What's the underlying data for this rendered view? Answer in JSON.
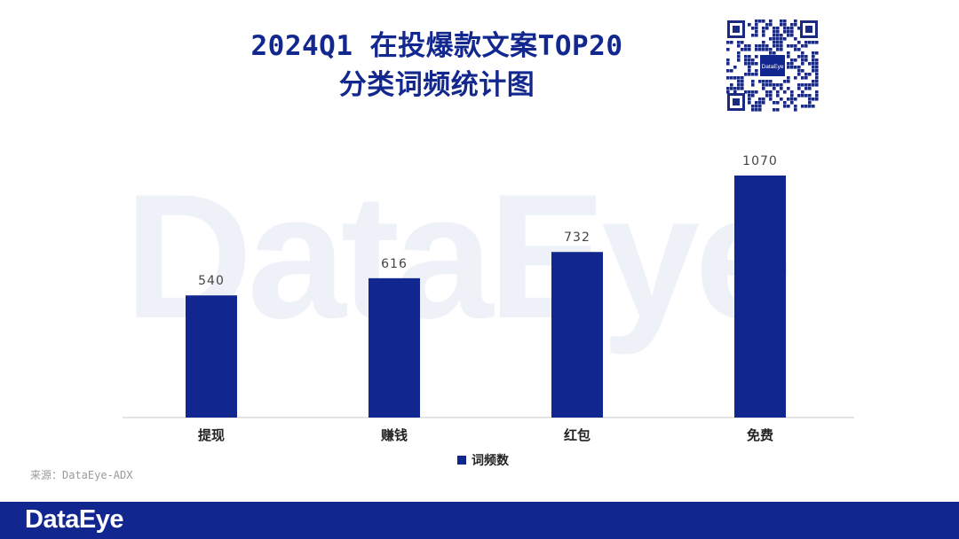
{
  "title_line1": "2024Q1 在投爆款文案TOP20",
  "title_line2": "分类词频统计图",
  "qr_logo_text": "DataEye",
  "watermark_text": "DataEye",
  "source_text": "来源：DataEye-ADX",
  "footer_logo": "DataEye",
  "colors": {
    "bar": "#12268f",
    "title": "#13288f",
    "footer": "#12268f"
  },
  "chart_data": {
    "type": "bar",
    "categories": [
      "提现",
      "赚钱",
      "红包",
      "免费"
    ],
    "series": [
      {
        "name": "词频数",
        "values": [
          540,
          616,
          732,
          1070
        ]
      }
    ],
    "title": "2024Q1 在投爆款文案TOP20 分类词频统计图",
    "xlabel": "",
    "ylabel": "",
    "ylim": [
      0,
      1100
    ],
    "grid": false,
    "legend": "bottom",
    "data_labels": true
  }
}
